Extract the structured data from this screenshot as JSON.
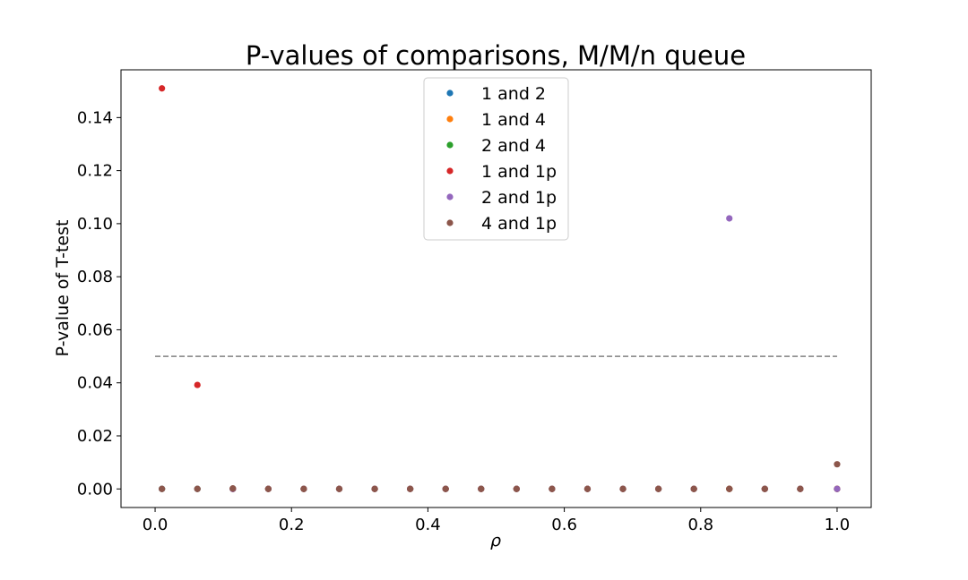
{
  "chart_data": {
    "type": "scatter",
    "title": "P-values of comparisons, M/M/n queue",
    "xlabel": "ρ",
    "ylabel": "P-value of T-test",
    "xlim": [
      -0.05,
      1.05
    ],
    "ylim": [
      -0.007,
      0.158
    ],
    "xticks": [
      0.0,
      0.2,
      0.4,
      0.6,
      0.8,
      1.0
    ],
    "xtick_labels": [
      "0.0",
      "0.2",
      "0.4",
      "0.6",
      "0.8",
      "1.0"
    ],
    "yticks": [
      0.0,
      0.02,
      0.04,
      0.06,
      0.08,
      0.1,
      0.12,
      0.14
    ],
    "ytick_labels": [
      "0.00",
      "0.02",
      "0.04",
      "0.06",
      "0.08",
      "0.10",
      "0.12",
      "0.14"
    ],
    "grid": false,
    "legend_position": "top-center",
    "x": [
      0.01,
      0.062,
      0.114,
      0.166,
      0.218,
      0.27,
      0.322,
      0.374,
      0.426,
      0.478,
      0.53,
      0.582,
      0.634,
      0.686,
      0.738,
      0.79,
      0.842,
      0.894,
      0.946,
      1.0
    ],
    "reference_line": {
      "y": 0.05,
      "x_from": 0.0,
      "x_to": 1.0,
      "color": "#808080",
      "style": "dashed"
    },
    "series": [
      {
        "name": "1 and 2",
        "color": "#1f77b4",
        "values": [
          0,
          0,
          0,
          0,
          0,
          0,
          0,
          0,
          0,
          0,
          0,
          0,
          0,
          0,
          0,
          0,
          0,
          0,
          0,
          0
        ]
      },
      {
        "name": "1 and 4",
        "color": "#ff7f0e",
        "values": [
          0,
          0,
          0,
          0,
          0,
          0,
          0,
          0,
          0,
          0,
          0,
          0,
          0,
          0,
          0,
          0,
          0,
          0,
          0,
          0
        ]
      },
      {
        "name": "2 and 4",
        "color": "#2ca02c",
        "values": [
          0,
          0,
          0,
          0,
          0,
          0,
          0,
          0,
          0,
          0,
          0,
          0,
          0,
          0,
          0,
          0,
          0,
          0,
          0,
          0
        ]
      },
      {
        "name": "1 and 1p",
        "color": "#d62728",
        "values": [
          0.151,
          0.0392,
          0,
          0,
          0,
          0,
          0,
          0,
          0,
          0,
          0,
          0,
          0,
          0,
          0,
          0,
          0,
          0,
          0,
          0
        ]
      },
      {
        "name": "2 and 1p",
        "color": "#9467bd",
        "values": [
          0,
          0,
          0,
          0,
          0,
          0,
          0,
          0,
          0,
          0,
          0,
          0,
          0,
          0,
          0,
          0,
          0.102,
          0,
          0,
          0
        ]
      },
      {
        "name": "4 and 1p",
        "color": "#8c564b",
        "values": [
          0,
          0,
          0.0002,
          0,
          0,
          0,
          0,
          0,
          0,
          0,
          0,
          0,
          0,
          0,
          0,
          0,
          0,
          0,
          0,
          0.0093
        ]
      }
    ]
  }
}
